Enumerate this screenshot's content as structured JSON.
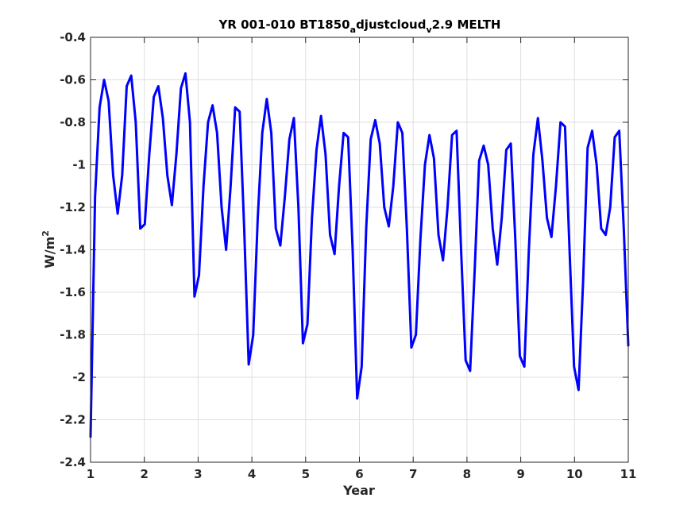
{
  "chart_data": {
    "type": "line",
    "title_parts": {
      "main": "YR 001-010 BT1850",
      "sub1": "a",
      "mid": "djustcloud",
      "sub2": "v",
      "tail": "2.9 MELTH"
    },
    "xlabel": "Year",
    "ylabel_parts": {
      "base": "W/m",
      "sup": "2"
    },
    "xlim": [
      1,
      11
    ],
    "ylim": [
      -2.4,
      -0.4
    ],
    "xticks": [
      1,
      2,
      3,
      4,
      5,
      6,
      7,
      8,
      9,
      10,
      11
    ],
    "xtick_labels": [
      "1",
      "2",
      "3",
      "4",
      "5",
      "6",
      "7",
      "8",
      "9",
      "10",
      "11"
    ],
    "yticks": [
      -2.4,
      -2.2,
      -2.0,
      -1.8,
      -1.6,
      -1.4,
      -1.2,
      -1.0,
      -0.8,
      -0.6,
      -0.4
    ],
    "ytick_labels": [
      "-2.4",
      "-2.2",
      "-2",
      "-1.8",
      "-1.6",
      "-1.4",
      "-1.2",
      "-1",
      "-0.8",
      "-0.6",
      "-0.4"
    ],
    "grid": true,
    "series_color": "#0000ff",
    "series": [
      {
        "values_y": [
          -2.28,
          -1.15,
          -0.73,
          -0.6,
          -0.7,
          -1.05,
          -1.23,
          -1.05,
          -0.63,
          -0.58,
          -0.8,
          -1.3,
          -1.28,
          -0.95,
          -0.68,
          -0.63,
          -0.78,
          -1.05,
          -1.19,
          -0.95,
          -0.64,
          -0.57,
          -0.8,
          -1.62,
          -1.52,
          -1.1,
          -0.8,
          -0.72,
          -0.85,
          -1.2,
          -1.4,
          -1.1,
          -0.73,
          -0.75,
          -1.3,
          -1.94,
          -1.8,
          -1.25,
          -0.85,
          -0.69,
          -0.85,
          -1.3,
          -1.38,
          -1.15,
          -0.88,
          -0.78,
          -1.2,
          -1.84,
          -1.75,
          -1.25,
          -0.93,
          -0.77,
          -0.95,
          -1.33,
          -1.42,
          -1.1,
          -0.85,
          -0.87,
          -1.4,
          -2.1,
          -1.95,
          -1.3,
          -0.88,
          -0.79,
          -0.9,
          -1.2,
          -1.29,
          -1.1,
          -0.8,
          -0.85,
          -1.3,
          -1.86,
          -1.8,
          -1.35,
          -1.0,
          -0.86,
          -0.97,
          -1.33,
          -1.45,
          -1.2,
          -0.86,
          -0.84,
          -1.4,
          -1.92,
          -1.97,
          -1.5,
          -0.98,
          -0.91,
          -1.0,
          -1.3,
          -1.47,
          -1.25,
          -0.93,
          -0.9,
          -1.35,
          -1.9,
          -1.95,
          -1.4,
          -0.95,
          -0.78,
          -0.98,
          -1.25,
          -1.34,
          -1.1,
          -0.8,
          -0.82,
          -1.4,
          -1.95,
          -2.06,
          -1.55,
          -0.92,
          -0.84,
          -1.0,
          -1.3,
          -1.33,
          -1.2,
          -0.87,
          -0.84,
          -1.3,
          -1.85
        ]
      }
    ]
  }
}
